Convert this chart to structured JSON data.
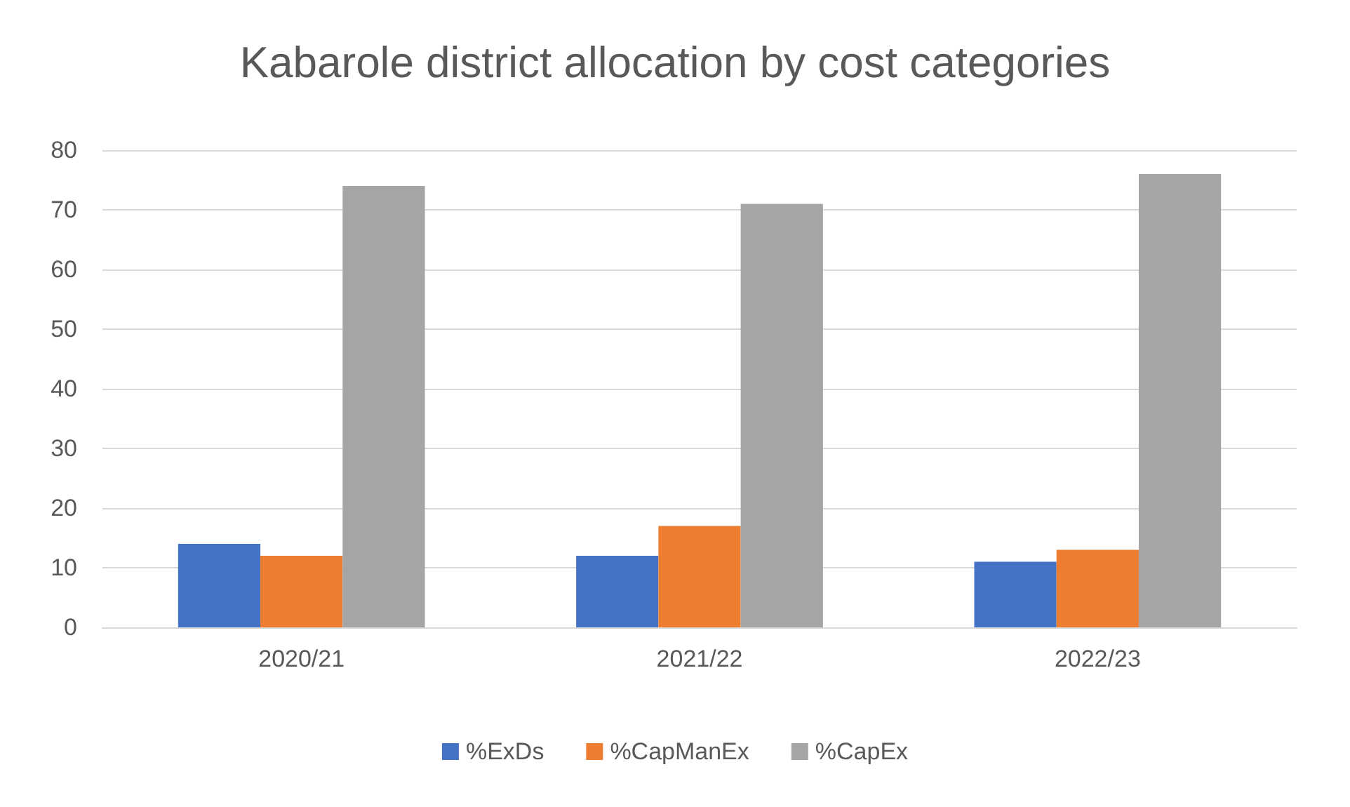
{
  "chart_data": {
    "type": "bar",
    "title": "Kabarole district allocation by cost categories",
    "categories": [
      "2020/21",
      "2021/22",
      "2022/23"
    ],
    "series": [
      {
        "name": "%ExDs",
        "color": "#4472c4",
        "values": [
          14,
          12,
          11
        ]
      },
      {
        "name": "%CapManEx",
        "color": "#ed7d31",
        "values": [
          12,
          17,
          13
        ]
      },
      {
        "name": "%CapEx",
        "color": "#a5a5a5",
        "values": [
          74,
          71,
          76
        ]
      }
    ],
    "ylim": [
      0,
      80
    ],
    "yticks": [
      0,
      10,
      20,
      30,
      40,
      50,
      60,
      70,
      80
    ],
    "grid": "y",
    "legend": "bottom"
  }
}
